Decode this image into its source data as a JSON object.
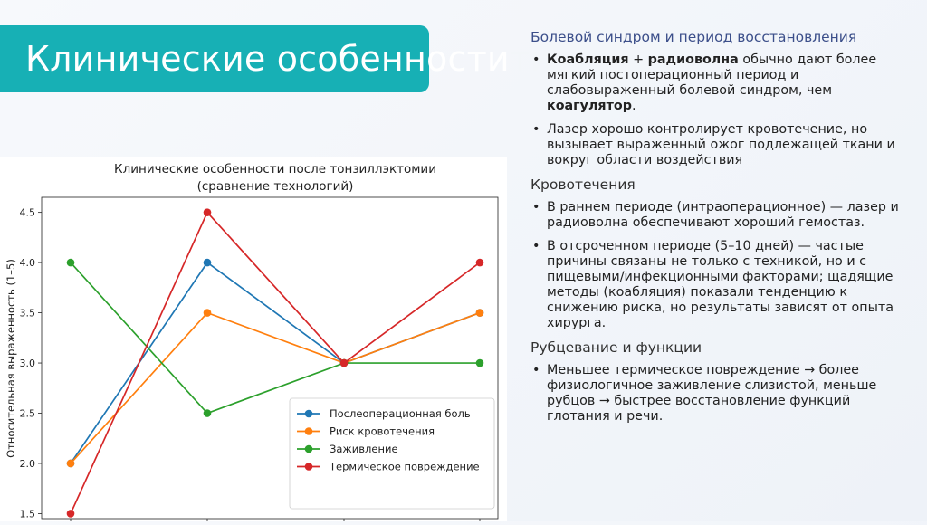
{
  "slide": {
    "title": "Клинические особенности",
    "title_overflow": "ти",
    "accent_color": "#17b0b5"
  },
  "content": {
    "section1": {
      "heading": "Болевой синдром и период восстановления",
      "bullet1": {
        "b1": "Коабляция",
        "t1": " + ",
        "b2": "радиоволна",
        "t2": " обычно дают более мягкий постоперационный период и слабовыраженный болевой синдром, чем ",
        "b3": "коагулятор",
        "t3": "."
      },
      "bullet2": "Лазер хорошо контролирует кровотечение, но вызывает выраженный ожог подлежащей ткани и вокруг области воздействия"
    },
    "section2": {
      "heading": "Кровотечения",
      "bullet1": "В раннем периоде (интраоперационное) — лазер и радиоволна обеспечивают хороший гемостаз.",
      "bullet2": "В отсроченном периоде (5–10 дней) — частые причины связаны не только с техникой, но и с пищевыми/инфекционными факторами; щадящие методы (коабляция) показали тенденцию к снижению риска, но результаты зависят от опыта хирурга."
    },
    "section3": {
      "heading": "Рубцевание и функции",
      "bullet1": "Меньшее термическое повреждение → более физиологичное заживление слизистой, меньше рубцов → быстрее восстановление функций глотания и речи."
    },
    "bullet_glyph": "•"
  },
  "chart_data": {
    "type": "line",
    "title_line1": "Клинические особенности после тонзиллэктомии",
    "title_line2": "(сравнение технологий)",
    "xlabel": "",
    "ylabel": "Относительная выраженность (1–5)",
    "x": [
      0,
      1,
      2,
      3
    ],
    "ylim": [
      1.45,
      4.65
    ],
    "yticks": [
      "1.5",
      "2.0",
      "2.5",
      "3.0",
      "3.5",
      "4.0",
      "4.5"
    ],
    "grid": false,
    "legend_position": "lower-right",
    "series": [
      {
        "name": "Послеоперационная боль",
        "color": "#1f77b4",
        "values": [
          2.0,
          4.0,
          3.0,
          3.5
        ]
      },
      {
        "name": "Риск кровотечения",
        "color": "#ff7f0e",
        "values": [
          2.0,
          3.5,
          3.0,
          3.5
        ]
      },
      {
        "name": "Заживление",
        "color": "#2ca02c",
        "values": [
          4.0,
          2.5,
          3.0,
          3.0
        ]
      },
      {
        "name": "Термическое повреждение",
        "color": "#d62728",
        "values": [
          1.5,
          4.5,
          3.0,
          4.0
        ]
      }
    ]
  }
}
